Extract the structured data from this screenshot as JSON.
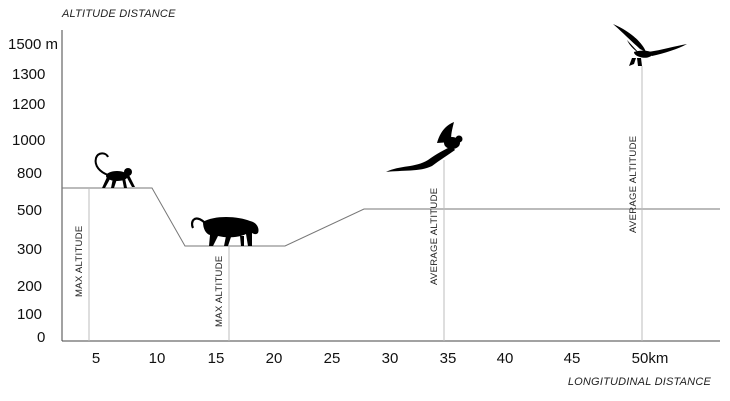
{
  "y_axis": {
    "title": "ALTITUDE DISTANCE",
    "ticks": [
      {
        "label": "1500 m",
        "value": 1500
      },
      {
        "label": "1300",
        "value": 1300
      },
      {
        "label": "1200",
        "value": 1200
      },
      {
        "label": "1000",
        "value": 1000
      },
      {
        "label": "800",
        "value": 800
      },
      {
        "label": "500",
        "value": 500
      },
      {
        "label": "300",
        "value": 300
      },
      {
        "label": "200",
        "value": 200
      },
      {
        "label": "100",
        "value": 100
      },
      {
        "label": "0",
        "value": 0
      }
    ]
  },
  "x_axis": {
    "title": "LONGITUDINAL DISTANCE",
    "ticks": [
      {
        "label": "5",
        "value": 5
      },
      {
        "label": "10",
        "value": 10
      },
      {
        "label": "15",
        "value": 15
      },
      {
        "label": "20",
        "value": 20
      },
      {
        "label": "25",
        "value": 25
      },
      {
        "label": "30",
        "value": 30
      },
      {
        "label": "35",
        "value": 35
      },
      {
        "label": "40",
        "value": 40
      },
      {
        "label": "45",
        "value": 45
      },
      {
        "label": "50km",
        "value": 50
      }
    ]
  },
  "animals": [
    {
      "name": "monkey",
      "label": "MAX ALTITUDE",
      "km": 5,
      "altitude": 650
    },
    {
      "name": "jaguar",
      "label": "MAX ALTITUDE",
      "km": 16,
      "altitude": 310
    },
    {
      "name": "quetzal",
      "label": "AVERAGE ALTITUDE",
      "km": 35,
      "altitude": 880
    },
    {
      "name": "eagle",
      "label": "AVERAGE ALTITUDE",
      "km": 50,
      "altitude": 1400
    }
  ],
  "colors": {
    "profile_line": "#777777",
    "guide_line": "#bdbdbd",
    "axis_line": "#444444",
    "silhouette": "#000000"
  },
  "icons": [
    "monkey-icon",
    "jaguar-icon",
    "quetzal-icon",
    "eagle-icon"
  ]
}
